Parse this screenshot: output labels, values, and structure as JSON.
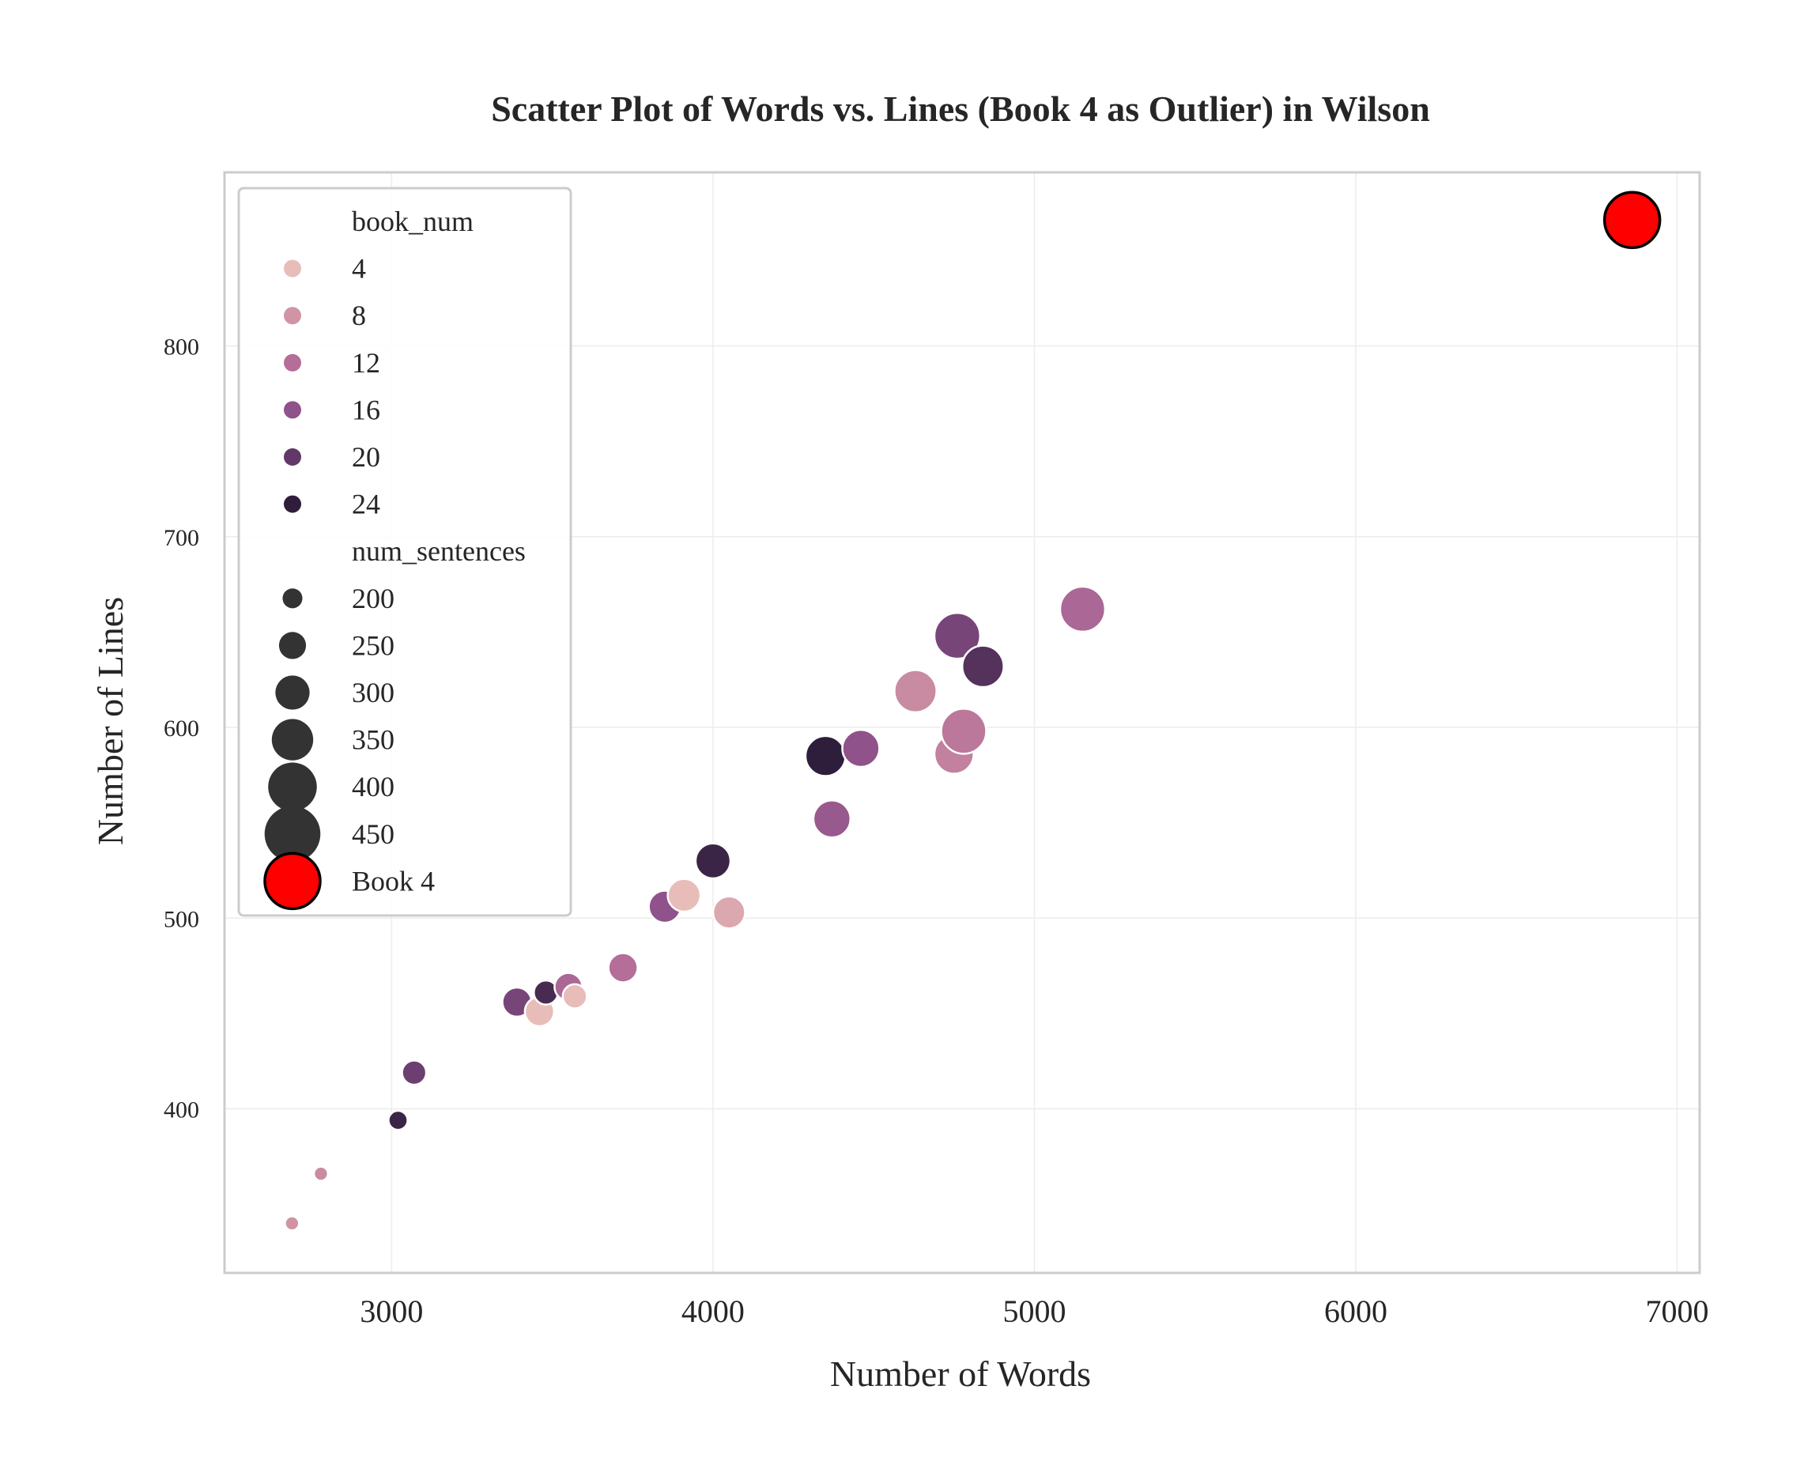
{
  "chart_data": {
    "type": "scatter",
    "title": "Scatter Plot of Words vs. Lines (Book 4 as Outlier) in Wilson",
    "xlabel": "Number of Words",
    "ylabel": "Number of Lines",
    "xlim": [
      2480,
      7070
    ],
    "ylim": [
      314,
      891
    ],
    "xticks": [
      3000,
      4000,
      5000,
      6000,
      7000
    ],
    "yticks": [
      400,
      500,
      600,
      700,
      800
    ],
    "grid": true,
    "legend_position": "upper-left",
    "hue_field": "book_num",
    "size_field": "num_sentences",
    "hue_legend": {
      "title": "book_num",
      "entries": [
        {
          "label": "4",
          "color": "#e8bcb9"
        },
        {
          "label": "8",
          "color": "#d094a4"
        },
        {
          "label": "12",
          "color": "#b46e98"
        },
        {
          "label": "16",
          "color": "#8f528a"
        },
        {
          "label": "20",
          "color": "#613867"
        },
        {
          "label": "24",
          "color": "#2e1e3b"
        }
      ]
    },
    "size_legend": {
      "title": "num_sentences",
      "entries": [
        {
          "label": "200",
          "value": 200
        },
        {
          "label": "250",
          "value": 250
        },
        {
          "label": "300",
          "value": 300
        },
        {
          "label": "350",
          "value": 350
        },
        {
          "label": "400",
          "value": 400
        },
        {
          "label": "450",
          "value": 450
        }
      ],
      "marker_color": "#333333"
    },
    "outlier_legend": {
      "label": "Book 4",
      "color": "#ff0000",
      "edge": "#000000"
    },
    "points": [
      {
        "x": 2690,
        "y": 340,
        "book_num": 8,
        "num_sentences": 160
      },
      {
        "x": 2780,
        "y": 366,
        "book_num": 9,
        "num_sentences": 160
      },
      {
        "x": 3020,
        "y": 394,
        "book_num": 23,
        "num_sentences": 195
      },
      {
        "x": 3070,
        "y": 419,
        "book_num": 19,
        "num_sentences": 230
      },
      {
        "x": 3390,
        "y": 456,
        "book_num": 18,
        "num_sentences": 265
      },
      {
        "x": 3460,
        "y": 451,
        "book_num": 3,
        "num_sentences": 265
      },
      {
        "x": 3480,
        "y": 461,
        "book_num": 22,
        "num_sentences": 230
      },
      {
        "x": 3550,
        "y": 464,
        "book_num": 13,
        "num_sentences": 255
      },
      {
        "x": 3570,
        "y": 459,
        "book_num": 2,
        "num_sentences": 230
      },
      {
        "x": 3720,
        "y": 474,
        "book_num": 12,
        "num_sentences": 265
      },
      {
        "x": 3850,
        "y": 506,
        "book_num": 16,
        "num_sentences": 285
      },
      {
        "x": 3910,
        "y": 512,
        "book_num": 3,
        "num_sentences": 290
      },
      {
        "x": 4000,
        "y": 530,
        "book_num": 23,
        "num_sentences": 305
      },
      {
        "x": 4050,
        "y": 503,
        "book_num": 6,
        "num_sentences": 285
      },
      {
        "x": 4350,
        "y": 585,
        "book_num": 24,
        "num_sentences": 340
      },
      {
        "x": 4370,
        "y": 552,
        "book_num": 15,
        "num_sentences": 320
      },
      {
        "x": 4460,
        "y": 589,
        "book_num": 16,
        "num_sentences": 320
      },
      {
        "x": 4630,
        "y": 619,
        "book_num": 9,
        "num_sentences": 355
      },
      {
        "x": 4750,
        "y": 586,
        "book_num": 10,
        "num_sentences": 335
      },
      {
        "x": 4780,
        "y": 598,
        "book_num": 11,
        "num_sentences": 375
      },
      {
        "x": 4760,
        "y": 648,
        "book_num": 18,
        "num_sentences": 380
      },
      {
        "x": 4840,
        "y": 632,
        "book_num": 21,
        "num_sentences": 350
      },
      {
        "x": 5150,
        "y": 662,
        "book_num": 13,
        "num_sentences": 375
      }
    ],
    "outlier": {
      "label": "Book 4",
      "x": 6860,
      "y": 866,
      "color": "#ff0000"
    }
  }
}
